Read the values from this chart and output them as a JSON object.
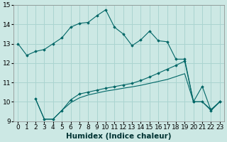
{
  "xlabel": "Humidex (Indice chaleur)",
  "background_color": "#cce8e4",
  "grid_color": "#aad4d0",
  "line_color": "#006666",
  "xlim": [
    -0.5,
    23.5
  ],
  "ylim": [
    9,
    15
  ],
  "xticks": [
    0,
    1,
    2,
    3,
    4,
    5,
    6,
    7,
    8,
    9,
    10,
    11,
    12,
    13,
    14,
    15,
    16,
    17,
    18,
    19,
    20,
    21,
    22,
    23
  ],
  "yticks": [
    9,
    10,
    11,
    12,
    13,
    14,
    15
  ],
  "line1_x": [
    0,
    1,
    2,
    3,
    4,
    5,
    6,
    7,
    8,
    9,
    10,
    11,
    12,
    13,
    14,
    15,
    16,
    17,
    18,
    19,
    20,
    21,
    22,
    23
  ],
  "line1_y": [
    13.0,
    12.4,
    12.6,
    12.7,
    13.0,
    13.3,
    13.85,
    14.05,
    14.1,
    14.45,
    14.75,
    13.85,
    13.5,
    12.9,
    13.2,
    13.65,
    13.15,
    13.1,
    12.2,
    12.2,
    10.0,
    10.0,
    9.6,
    10.0
  ],
  "line2_x": [
    2,
    3,
    4,
    5,
    6,
    7,
    8,
    9,
    10,
    11,
    12,
    13,
    14,
    15,
    16,
    17,
    18,
    19,
    20,
    21,
    22,
    23
  ],
  "line2_y": [
    10.15,
    9.1,
    9.1,
    9.55,
    10.1,
    10.4,
    10.5,
    10.6,
    10.7,
    10.78,
    10.87,
    10.95,
    11.1,
    11.28,
    11.48,
    11.68,
    11.88,
    12.1,
    10.0,
    10.8,
    9.55,
    10.0
  ],
  "line3_x": [
    2,
    3,
    4,
    5,
    6,
    7,
    8,
    9,
    10,
    11,
    12,
    13,
    14,
    15,
    16,
    17,
    18,
    19,
    20,
    21,
    22,
    23
  ],
  "line3_y": [
    10.15,
    9.1,
    9.1,
    9.55,
    9.95,
    10.2,
    10.35,
    10.45,
    10.55,
    10.62,
    10.7,
    10.77,
    10.85,
    10.95,
    11.05,
    11.15,
    11.3,
    11.45,
    10.0,
    10.0,
    9.55,
    10.0
  ],
  "tick_fontsize": 6.5,
  "xlabel_fontsize": 7.5,
  "xlabel_fontweight": "bold"
}
